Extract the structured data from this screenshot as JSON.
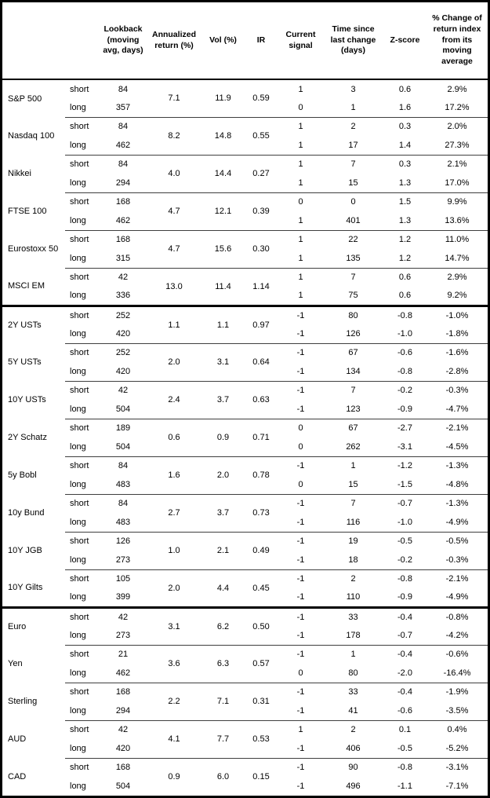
{
  "colors": {
    "background": "#ffffff",
    "text": "#000000",
    "outer_border": "#000000",
    "section_separator": "#000000",
    "row_separator": "#3f3f3f"
  },
  "chart_data": {
    "type": "table",
    "layout": {
      "grid": "horizontal rules only, no vertical rules",
      "section_breaks_after": [
        "MSCI EM",
        "10Y Gilts"
      ],
      "merged_columns_per_asset": [
        "annualized_return",
        "vol",
        "ir"
      ]
    },
    "headers": {
      "asset": "",
      "side": "",
      "lookback": "Lookback (moving avg, days)",
      "annualized_return": "Annualized return (%)",
      "vol": "Vol (%)",
      "ir": "IR",
      "current_signal": "Current signal",
      "time_since": "Time since last change (days)",
      "z_score": "Z-score",
      "pct_change": "% Change of return index from its moving average"
    },
    "side_labels": {
      "short": "short",
      "long": "long"
    },
    "sections": [
      {
        "assets": [
          {
            "name": "S&P 500",
            "annualized_return": "7.1",
            "vol": "11.9",
            "ir": "0.59",
            "short": {
              "lookback": "84",
              "signal": "1",
              "time": "3",
              "z": "0.6",
              "pct": "2.9%"
            },
            "long": {
              "lookback": "357",
              "signal": "0",
              "time": "1",
              "z": "1.6",
              "pct": "17.2%"
            }
          },
          {
            "name": "Nasdaq 100",
            "annualized_return": "8.2",
            "vol": "14.8",
            "ir": "0.55",
            "short": {
              "lookback": "84",
              "signal": "1",
              "time": "2",
              "z": "0.3",
              "pct": "2.0%"
            },
            "long": {
              "lookback": "462",
              "signal": "1",
              "time": "17",
              "z": "1.4",
              "pct": "27.3%"
            }
          },
          {
            "name": "Nikkei",
            "annualized_return": "4.0",
            "vol": "14.4",
            "ir": "0.27",
            "short": {
              "lookback": "84",
              "signal": "1",
              "time": "7",
              "z": "0.3",
              "pct": "2.1%"
            },
            "long": {
              "lookback": "294",
              "signal": "1",
              "time": "15",
              "z": "1.3",
              "pct": "17.0%"
            }
          },
          {
            "name": "FTSE 100",
            "annualized_return": "4.7",
            "vol": "12.1",
            "ir": "0.39",
            "short": {
              "lookback": "168",
              "signal": "0",
              "time": "0",
              "z": "1.5",
              "pct": "9.9%"
            },
            "long": {
              "lookback": "462",
              "signal": "1",
              "time": "401",
              "z": "1.3",
              "pct": "13.6%"
            }
          },
          {
            "name": "Eurostoxx 50",
            "annualized_return": "4.7",
            "vol": "15.6",
            "ir": "0.30",
            "short": {
              "lookback": "168",
              "signal": "1",
              "time": "22",
              "z": "1.2",
              "pct": "11.0%"
            },
            "long": {
              "lookback": "315",
              "signal": "1",
              "time": "135",
              "z": "1.2",
              "pct": "14.7%"
            }
          },
          {
            "name": "MSCI EM",
            "annualized_return": "13.0",
            "vol": "11.4",
            "ir": "1.14",
            "short": {
              "lookback": "42",
              "signal": "1",
              "time": "7",
              "z": "0.6",
              "pct": "2.9%"
            },
            "long": {
              "lookback": "336",
              "signal": "1",
              "time": "75",
              "z": "0.6",
              "pct": "9.2%"
            }
          }
        ]
      },
      {
        "assets": [
          {
            "name": "2Y USTs",
            "annualized_return": "1.1",
            "vol": "1.1",
            "ir": "0.97",
            "short": {
              "lookback": "252",
              "signal": "-1",
              "time": "80",
              "z": "-0.8",
              "pct": "-1.0%"
            },
            "long": {
              "lookback": "420",
              "signal": "-1",
              "time": "126",
              "z": "-1.0",
              "pct": "-1.8%"
            }
          },
          {
            "name": "5Y USTs",
            "annualized_return": "2.0",
            "vol": "3.1",
            "ir": "0.64",
            "short": {
              "lookback": "252",
              "signal": "-1",
              "time": "67",
              "z": "-0.6",
              "pct": "-1.6%"
            },
            "long": {
              "lookback": "420",
              "signal": "-1",
              "time": "134",
              "z": "-0.8",
              "pct": "-2.8%"
            }
          },
          {
            "name": "10Y USTs",
            "annualized_return": "2.4",
            "vol": "3.7",
            "ir": "0.63",
            "short": {
              "lookback": "42",
              "signal": "-1",
              "time": "7",
              "z": "-0.2",
              "pct": "-0.3%"
            },
            "long": {
              "lookback": "504",
              "signal": "-1",
              "time": "123",
              "z": "-0.9",
              "pct": "-4.7%"
            }
          },
          {
            "name": "2Y Schatz",
            "annualized_return": "0.6",
            "vol": "0.9",
            "ir": "0.71",
            "short": {
              "lookback": "189",
              "signal": "0",
              "time": "67",
              "z": "-2.7",
              "pct": "-2.1%"
            },
            "long": {
              "lookback": "504",
              "signal": "0",
              "time": "262",
              "z": "-3.1",
              "pct": "-4.5%"
            }
          },
          {
            "name": "5y Bobl",
            "annualized_return": "1.6",
            "vol": "2.0",
            "ir": "0.78",
            "short": {
              "lookback": "84",
              "signal": "-1",
              "time": "1",
              "z": "-1.2",
              "pct": "-1.3%"
            },
            "long": {
              "lookback": "483",
              "signal": "0",
              "time": "15",
              "z": "-1.5",
              "pct": "-4.8%"
            }
          },
          {
            "name": "10y Bund",
            "annualized_return": "2.7",
            "vol": "3.7",
            "ir": "0.73",
            "short": {
              "lookback": "84",
              "signal": "-1",
              "time": "7",
              "z": "-0.7",
              "pct": "-1.3%"
            },
            "long": {
              "lookback": "483",
              "signal": "-1",
              "time": "116",
              "z": "-1.0",
              "pct": "-4.9%"
            }
          },
          {
            "name": "10Y JGB",
            "annualized_return": "1.0",
            "vol": "2.1",
            "ir": "0.49",
            "short": {
              "lookback": "126",
              "signal": "-1",
              "time": "19",
              "z": "-0.5",
              "pct": "-0.5%"
            },
            "long": {
              "lookback": "273",
              "signal": "-1",
              "time": "18",
              "z": "-0.2",
              "pct": "-0.3%"
            }
          },
          {
            "name": "10Y Gilts",
            "annualized_return": "2.0",
            "vol": "4.4",
            "ir": "0.45",
            "short": {
              "lookback": "105",
              "signal": "-1",
              "time": "2",
              "z": "-0.8",
              "pct": "-2.1%"
            },
            "long": {
              "lookback": "399",
              "signal": "-1",
              "time": "110",
              "z": "-0.9",
              "pct": "-4.9%"
            }
          }
        ]
      },
      {
        "assets": [
          {
            "name": "Euro",
            "annualized_return": "3.1",
            "vol": "6.2",
            "ir": "0.50",
            "short": {
              "lookback": "42",
              "signal": "-1",
              "time": "33",
              "z": "-0.4",
              "pct": "-0.8%"
            },
            "long": {
              "lookback": "273",
              "signal": "-1",
              "time": "178",
              "z": "-0.7",
              "pct": "-4.2%"
            }
          },
          {
            "name": "Yen",
            "annualized_return": "3.6",
            "vol": "6.3",
            "ir": "0.57",
            "short": {
              "lookback": "21",
              "signal": "-1",
              "time": "1",
              "z": "-0.4",
              "pct": "-0.6%"
            },
            "long": {
              "lookback": "462",
              "signal": "0",
              "time": "80",
              "z": "-2.0",
              "pct": "-16.4%"
            }
          },
          {
            "name": "Sterling",
            "annualized_return": "2.2",
            "vol": "7.1",
            "ir": "0.31",
            "short": {
              "lookback": "168",
              "signal": "-1",
              "time": "33",
              "z": "-0.4",
              "pct": "-1.9%"
            },
            "long": {
              "lookback": "294",
              "signal": "-1",
              "time": "41",
              "z": "-0.6",
              "pct": "-3.5%"
            }
          },
          {
            "name": "AUD",
            "annualized_return": "4.1",
            "vol": "7.7",
            "ir": "0.53",
            "short": {
              "lookback": "42",
              "signal": "1",
              "time": "2",
              "z": "0.1",
              "pct": "0.4%"
            },
            "long": {
              "lookback": "420",
              "signal": "-1",
              "time": "406",
              "z": "-0.5",
              "pct": "-5.2%"
            }
          },
          {
            "name": "CAD",
            "annualized_return": "0.9",
            "vol": "6.0",
            "ir": "0.15",
            "short": {
              "lookback": "168",
              "signal": "-1",
              "time": "90",
              "z": "-0.8",
              "pct": "-3.1%"
            },
            "long": {
              "lookback": "504",
              "signal": "-1",
              "time": "496",
              "z": "-1.1",
              "pct": "-7.1%"
            }
          }
        ]
      }
    ]
  }
}
